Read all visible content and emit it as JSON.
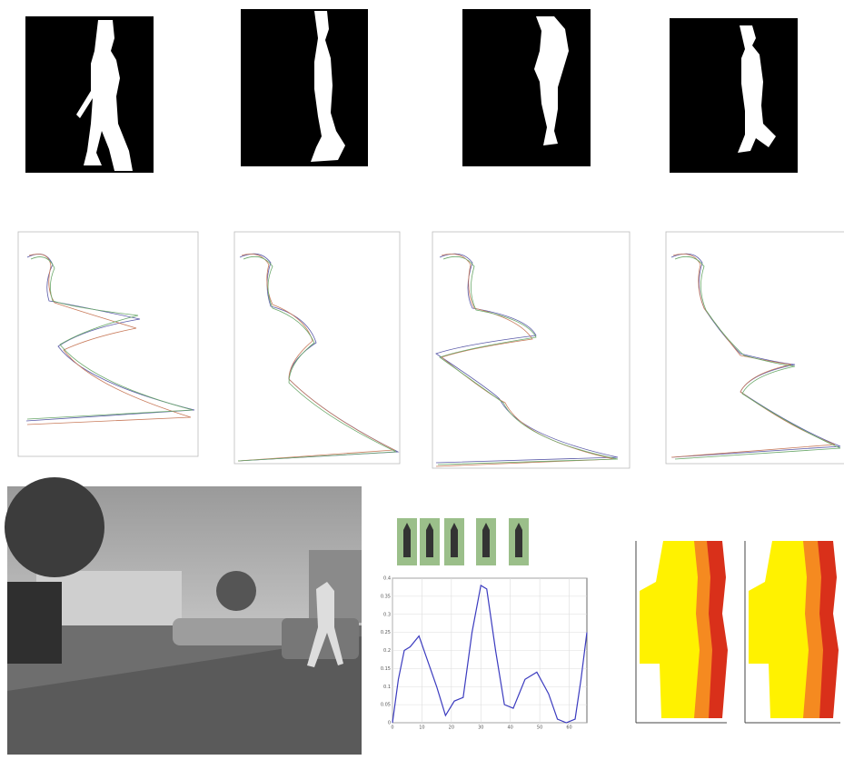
{
  "chart_data": {
    "type": "line",
    "x": [
      0,
      2,
      4,
      6,
      9,
      12,
      15,
      18,
      21,
      24,
      27,
      30,
      32,
      35,
      38,
      41,
      45,
      49,
      53,
      56,
      59,
      62,
      64,
      66
    ],
    "series": [
      {
        "color": "#3b3bbf",
        "values": [
          0,
          0.12,
          0.2,
          0.21,
          0.24,
          0.17,
          0.1,
          0.02,
          0.06,
          0.07,
          0.25,
          0.38,
          0.37,
          0.2,
          0.05,
          0.04,
          0.12,
          0.14,
          0.08,
          0.01,
          0,
          0.01,
          0.12,
          0.25
        ]
      }
    ],
    "xlim": [
      0,
      66
    ],
    "xticks": [
      0,
      10,
      20,
      30,
      40,
      50,
      60
    ],
    "ylim": [
      0,
      0.4
    ],
    "yticks": [
      0,
      0.05,
      0.1,
      0.15,
      0.2,
      0.25,
      0.3,
      0.35,
      0.4
    ],
    "grid": true
  }
}
